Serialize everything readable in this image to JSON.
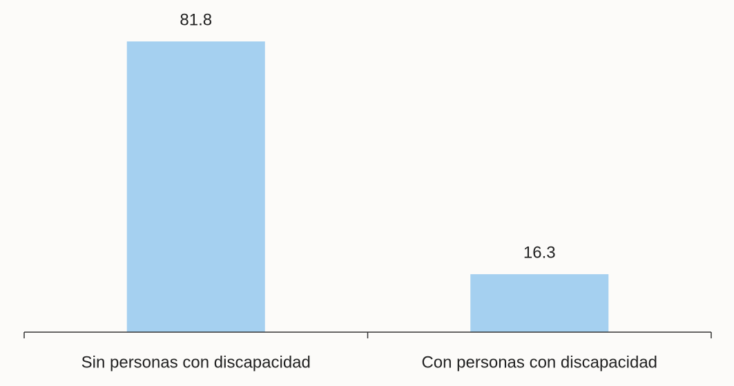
{
  "chart_data": {
    "type": "bar",
    "categories": [
      "Sin personas con discapacidad",
      "Con personas con discapacidad"
    ],
    "values": [
      81.8,
      16.3
    ],
    "color": "#a5d0f0"
  }
}
